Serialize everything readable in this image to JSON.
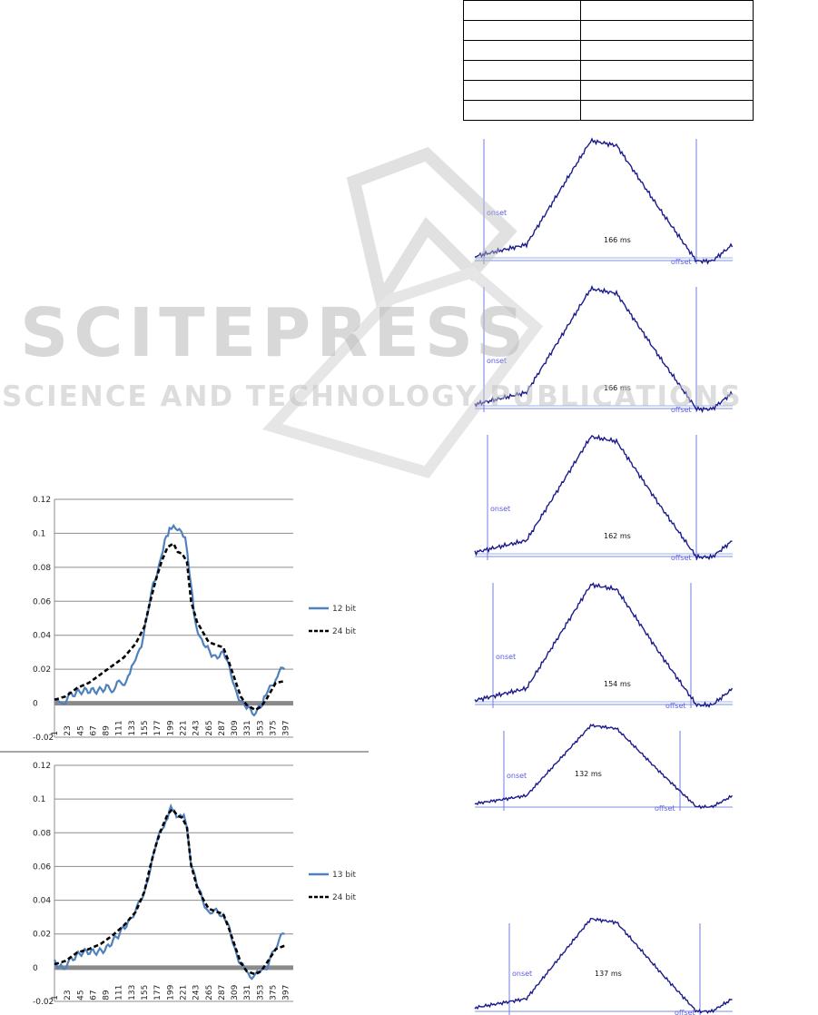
{
  "table": {
    "rows": 6,
    "cols": 2
  },
  "chart_data": [
    {
      "type": "line",
      "panel": "left-top",
      "ylim": [
        -0.02,
        0.12
      ],
      "yticks": [
        "0.12",
        "0.1",
        "0.08",
        "0.06",
        "0.04",
        "0.02",
        "0",
        "-0.02"
      ],
      "yticks_values": [
        0.12,
        0.1,
        0.08,
        0.06,
        0.04,
        0.02,
        0,
        -0.02
      ],
      "xticks": [
        "1",
        "23",
        "45",
        "67",
        "89",
        "111",
        "133",
        "155",
        "177",
        "199",
        "221",
        "243",
        "265",
        "287",
        "309",
        "331",
        "353",
        "375",
        "397"
      ],
      "xlim": [
        1,
        410
      ],
      "series": [
        {
          "name": "12 bit",
          "style": "solid",
          "color": "#4f81bd",
          "points": [
            [
              1,
              0.002
            ],
            [
              20,
              0.0
            ],
            [
              30,
              0.005
            ],
            [
              50,
              0.006
            ],
            [
              70,
              0.008
            ],
            [
              90,
              0.01
            ],
            [
              105,
              0.009
            ],
            [
              115,
              0.012
            ],
            [
              130,
              0.016
            ],
            [
              140,
              0.028
            ],
            [
              150,
              0.035
            ],
            [
              160,
              0.05
            ],
            [
              170,
              0.07
            ],
            [
              180,
              0.082
            ],
            [
              190,
              0.095
            ],
            [
              198,
              0.104
            ],
            [
              205,
              0.103
            ],
            [
              215,
              0.1
            ],
            [
              225,
              0.099
            ],
            [
              232,
              0.08
            ],
            [
              240,
              0.052
            ],
            [
              250,
              0.04
            ],
            [
              260,
              0.032
            ],
            [
              270,
              0.028
            ],
            [
              280,
              0.029
            ],
            [
              290,
              0.03
            ],
            [
              300,
              0.02
            ],
            [
              310,
              0.01
            ],
            [
              320,
              0.002
            ],
            [
              330,
              -0.004
            ],
            [
              340,
              -0.005
            ],
            [
              352,
              -0.002
            ],
            [
              360,
              0.002
            ],
            [
              370,
              0.008
            ],
            [
              380,
              0.015
            ],
            [
              395,
              0.02
            ]
          ]
        },
        {
          "name": "24 bit",
          "style": "dashed",
          "color": "#000000",
          "points": [
            [
              1,
              0.002
            ],
            [
              20,
              0.004
            ],
            [
              40,
              0.009
            ],
            [
              60,
              0.012
            ],
            [
              80,
              0.017
            ],
            [
              100,
              0.022
            ],
            [
              120,
              0.027
            ],
            [
              140,
              0.035
            ],
            [
              155,
              0.045
            ],
            [
              165,
              0.06
            ],
            [
              175,
              0.073
            ],
            [
              185,
              0.084
            ],
            [
              195,
              0.092
            ],
            [
              205,
              0.094
            ],
            [
              212,
              0.089
            ],
            [
              220,
              0.088
            ],
            [
              228,
              0.083
            ],
            [
              235,
              0.06
            ],
            [
              245,
              0.048
            ],
            [
              255,
              0.042
            ],
            [
              265,
              0.036
            ],
            [
              280,
              0.034
            ],
            [
              290,
              0.033
            ],
            [
              300,
              0.024
            ],
            [
              310,
              0.014
            ],
            [
              320,
              0.004
            ],
            [
              330,
              -0.001
            ],
            [
              345,
              -0.004
            ],
            [
              355,
              -0.002
            ],
            [
              365,
              0.003
            ],
            [
              380,
              0.012
            ],
            [
              395,
              0.013
            ]
          ]
        }
      ]
    },
    {
      "type": "line",
      "panel": "left-bottom",
      "ylim": [
        -0.02,
        0.12
      ],
      "yticks": [
        "0.12",
        "0.1",
        "0.08",
        "0.06",
        "0.04",
        "0.02",
        "0",
        "-0.02"
      ],
      "yticks_values": [
        0.12,
        0.1,
        0.08,
        0.06,
        0.04,
        0.02,
        0,
        -0.02
      ],
      "xticks": [
        "1",
        "23",
        "45",
        "67",
        "89",
        "111",
        "133",
        "155",
        "177",
        "199",
        "221",
        "243",
        "265",
        "287",
        "309",
        "331",
        "353",
        "375",
        "397"
      ],
      "xlim": [
        1,
        410
      ],
      "series": [
        {
          "name": "13 bit",
          "style": "solid",
          "color": "#4f81bd",
          "points": [
            [
              1,
              0.004
            ],
            [
              15,
              -0.002
            ],
            [
              30,
              0.005
            ],
            [
              50,
              0.008
            ],
            [
              70,
              0.01
            ],
            [
              90,
              0.012
            ],
            [
              110,
              0.018
            ],
            [
              130,
              0.028
            ],
            [
              145,
              0.036
            ],
            [
              155,
              0.045
            ],
            [
              165,
              0.06
            ],
            [
              175,
              0.072
            ],
            [
              185,
              0.082
            ],
            [
              195,
              0.09
            ],
            [
              203,
              0.095
            ],
            [
              210,
              0.092
            ],
            [
              220,
              0.09
            ],
            [
              228,
              0.084
            ],
            [
              235,
              0.062
            ],
            [
              245,
              0.048
            ],
            [
              255,
              0.04
            ],
            [
              265,
              0.034
            ],
            [
              278,
              0.032
            ],
            [
              290,
              0.031
            ],
            [
              300,
              0.022
            ],
            [
              310,
              0.012
            ],
            [
              320,
              0.003
            ],
            [
              330,
              -0.003
            ],
            [
              345,
              -0.006
            ],
            [
              355,
              -0.002
            ],
            [
              365,
              0.002
            ],
            [
              380,
              0.012
            ],
            [
              395,
              0.02
            ]
          ]
        },
        {
          "name": "24 bit",
          "style": "dashed",
          "color": "#000000",
          "points": [
            [
              1,
              0.002
            ],
            [
              20,
              0.004
            ],
            [
              40,
              0.009
            ],
            [
              60,
              0.011
            ],
            [
              80,
              0.014
            ],
            [
              100,
              0.019
            ],
            [
              120,
              0.025
            ],
            [
              140,
              0.033
            ],
            [
              155,
              0.045
            ],
            [
              165,
              0.06
            ],
            [
              175,
              0.073
            ],
            [
              185,
              0.083
            ],
            [
              195,
              0.091
            ],
            [
              203,
              0.094
            ],
            [
              212,
              0.09
            ],
            [
              220,
              0.089
            ],
            [
              228,
              0.083
            ],
            [
              235,
              0.061
            ],
            [
              245,
              0.048
            ],
            [
              255,
              0.041
            ],
            [
              265,
              0.035
            ],
            [
              280,
              0.033
            ],
            [
              290,
              0.032
            ],
            [
              300,
              0.023
            ],
            [
              310,
              0.013
            ],
            [
              320,
              0.003
            ],
            [
              330,
              -0.002
            ],
            [
              345,
              -0.004
            ],
            [
              355,
              -0.002
            ],
            [
              365,
              0.003
            ],
            [
              380,
              0.011
            ],
            [
              395,
              0.013
            ]
          ]
        }
      ]
    },
    {
      "type": "line",
      "panel": "right-waveforms",
      "annotations": [
        "onset",
        "offset"
      ],
      "waveforms": [
        {
          "duration_label": "166 ms"
        },
        {
          "duration_label": "166 ms"
        },
        {
          "duration_label": "162 ms"
        },
        {
          "duration_label": "154 ms"
        },
        {
          "duration_label": "132 ms"
        },
        {
          "duration_label": "137 ms"
        }
      ]
    }
  ],
  "watermark": {
    "title": "SCITEPRESS",
    "subtitle": "SCIENCE AND TECHNOLOGY PUBLICATIONS"
  }
}
